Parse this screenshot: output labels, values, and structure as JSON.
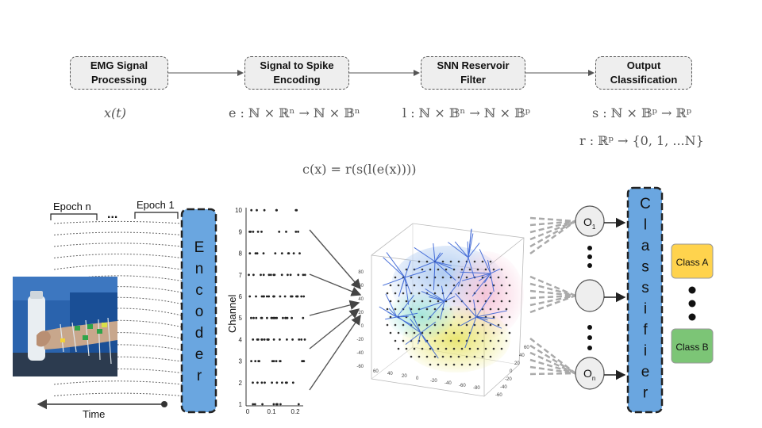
{
  "pipeline": {
    "stages": [
      {
        "label": "EMG Signal\nProcessing",
        "formula": "x(t)"
      },
      {
        "label": "Signal to Spike\nEncoding",
        "formula": "e : ℕ × ℝⁿ → ℕ × 𝔹ⁿ"
      },
      {
        "label": "SNN Reservoir\nFilter",
        "formula": "l : ℕ × 𝔹ⁿ → ℕ × 𝔹ᵖ"
      },
      {
        "label": "Output\nClassification",
        "formula": "s : ℕ × 𝔹ᵖ → ℝᵖ"
      }
    ],
    "extra_formula": "r : ℝᵖ → {0, 1, ...N}",
    "composite_formula": "c(x) = r(s(l(e(x))))"
  },
  "figure": {
    "epoch_n": "Epoch n",
    "epoch_1": "Epoch 1",
    "ellipsis": "...",
    "time_label": "Time",
    "encoder_letters": [
      "E",
      "n",
      "c",
      "o",
      "d",
      "e",
      "r"
    ],
    "classifier_letters": [
      "C",
      "l",
      "a",
      "s",
      "s",
      "i",
      "f",
      "i",
      "e",
      "r"
    ],
    "raster": {
      "ylabel": "Channel",
      "yticks": [
        "1",
        "2",
        "3",
        "4",
        "5",
        "6",
        "7",
        "8",
        "9",
        "10"
      ],
      "xticks": [
        "0",
        "0.1",
        "0.2"
      ]
    },
    "outputs": {
      "first": "O",
      "first_sub": "1",
      "last": "O",
      "last_sub": "n"
    },
    "classes": {
      "a": "Class A",
      "b": "Class B"
    },
    "colors": {
      "encoder": "#6aa6e0",
      "class_a": "#ffd34d",
      "class_b": "#7cc576",
      "box_fill": "#eeeeee"
    }
  }
}
